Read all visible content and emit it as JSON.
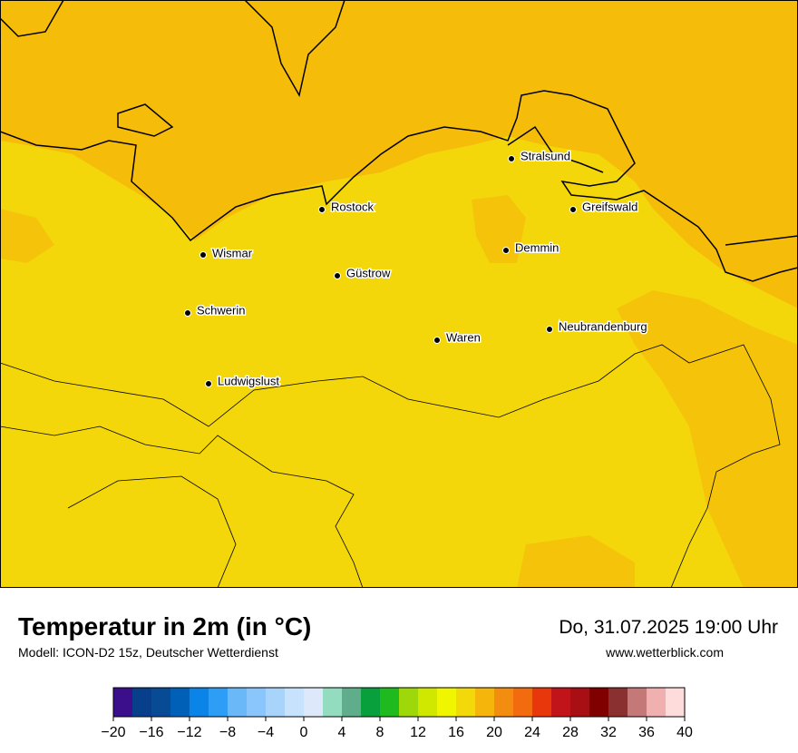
{
  "header": {
    "title": "Temperatur in 2m (in °C)",
    "subtitle": "Modell: ICON-D2 15z, Deutscher Wetterdienst",
    "date": "Do, 31.07.2025 19:00 Uhr",
    "website": "www.wetterblick.com"
  },
  "cities": [
    "Stralsund",
    "Rostock",
    "Greifswald",
    "Wismar",
    "Demmin",
    "Güstrow",
    "Schwerin",
    "Neubrandenburg",
    "Waren",
    "Ludwigslust"
  ],
  "colorbar": {
    "lim": [
      -20,
      40
    ],
    "colors": [
      "#3b0f8c",
      "#083f8a",
      "#064b93",
      "#0060b8",
      "#0a84e6",
      "#2e9df5",
      "#6bb8f8",
      "#8ac6fb",
      "#a8d4fb",
      "#c6e2fc",
      "#dde9fb",
      "#94dcc0",
      "#5fad8a",
      "#07a03c",
      "#1eba1e",
      "#9fd80a",
      "#d0e800",
      "#f0f500",
      "#f3d80a",
      "#f5b50a",
      "#f28d0f",
      "#f26b0f",
      "#e8380b",
      "#c0141a",
      "#a80f14",
      "#800000",
      "#8a3030",
      "#c47878",
      "#f0b0b0",
      "#ffdcdc"
    ],
    "ticks": [
      {
        "value": -20,
        "label": "−20"
      },
      {
        "value": -16,
        "label": "−16"
      },
      {
        "value": -12,
        "label": "−12"
      },
      {
        "value": -8,
        "label": "−8"
      },
      {
        "value": -4,
        "label": "−4"
      },
      0,
      4,
      8,
      12,
      16,
      20,
      24,
      28,
      32,
      36,
      40
    ]
  }
}
